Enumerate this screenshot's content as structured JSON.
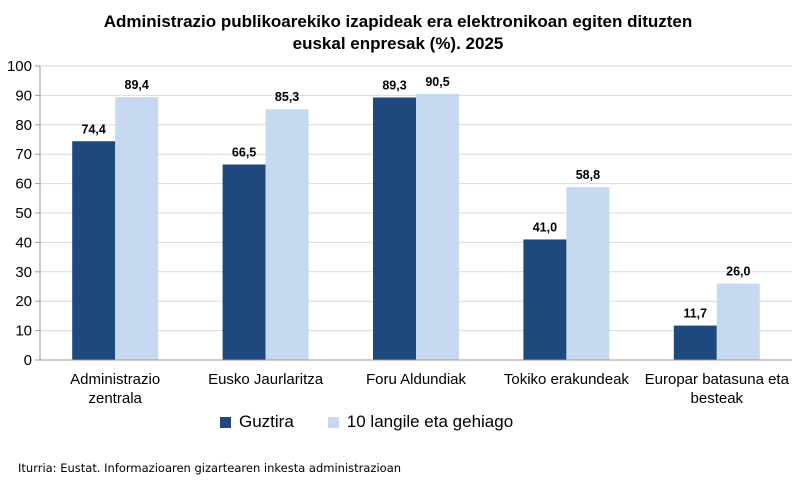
{
  "chart_data": {
    "type": "bar",
    "title": [
      "Administrazio publikoarekiko izapideak era elektronikoan egiten dituzten",
      "euskal enpresak (%). 2025"
    ],
    "categories": [
      [
        "Administrazio",
        "zentrala"
      ],
      [
        "Eusko Jaurlaritza"
      ],
      [
        "Foru Aldundiak"
      ],
      [
        "Tokiko erakundeak"
      ],
      [
        "Europar batasuna eta",
        "besteak"
      ]
    ],
    "series": [
      {
        "name": "Guztira",
        "color": "#1f497d",
        "values": [
          74.4,
          66.5,
          89.3,
          41.0,
          11.7
        ],
        "labels": [
          "74,4",
          "66,5",
          "89,3",
          "41,0",
          "11,7"
        ]
      },
      {
        "name": "10 langile eta gehiago",
        "color": "#c6d9f1",
        "values": [
          89.4,
          85.3,
          90.5,
          58.8,
          26.0
        ],
        "labels": [
          "89,4",
          "85,3",
          "90,5",
          "58,8",
          "26,0"
        ]
      }
    ],
    "ylim": [
      0,
      100
    ],
    "yticks": [
      "0",
      "10",
      "20",
      "30",
      "40",
      "50",
      "60",
      "70",
      "80",
      "90",
      "100"
    ],
    "grid": true,
    "legend_position": "bottom"
  },
  "source": "Iturria: Eustat. Informazioaren gizartearen inkesta administrazioan"
}
